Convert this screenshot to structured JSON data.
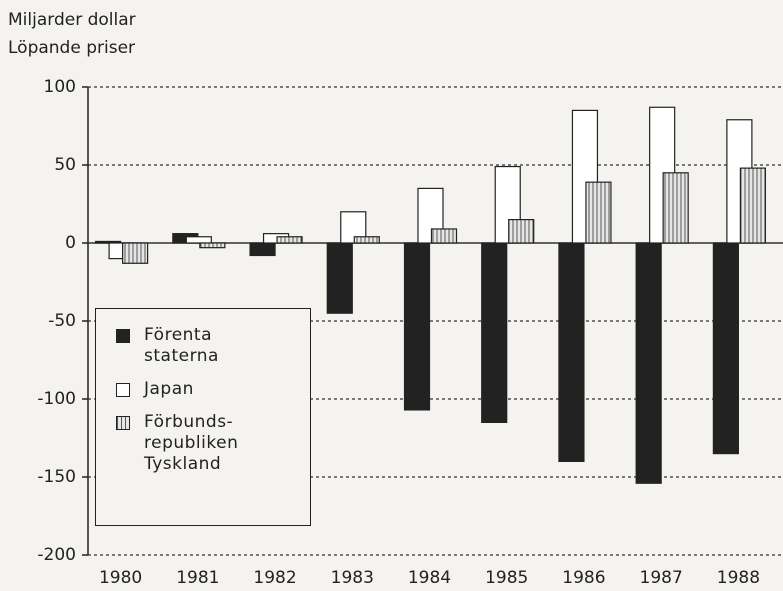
{
  "chart_data": {
    "type": "bar",
    "ylabel": [
      "Miljarder dollar",
      "Löpande priser"
    ],
    "categories": [
      "1980",
      "1981",
      "1982",
      "1983",
      "1984",
      "1985",
      "1986",
      "1987",
      "1988"
    ],
    "series": [
      {
        "name": "Förenta staterna",
        "color": "#222222",
        "values": [
          1,
          6,
          -8,
          -45,
          -107,
          -115,
          -140,
          -154,
          -135
        ]
      },
      {
        "name": "Japan",
        "color": "#ffffff",
        "values": [
          -10,
          4,
          6,
          20,
          35,
          49,
          85,
          87,
          79
        ]
      },
      {
        "name": "Förbunds-republiken Tyskland",
        "color": "#d8d8d8",
        "pattern": "vertical-lines",
        "values": [
          -13,
          -3,
          4,
          4,
          9,
          15,
          39,
          45,
          48
        ]
      }
    ],
    "ylim": [
      -200,
      100
    ],
    "yticks": [
      -200,
      -150,
      -100,
      -50,
      0,
      50,
      100
    ],
    "grid": true
  }
}
